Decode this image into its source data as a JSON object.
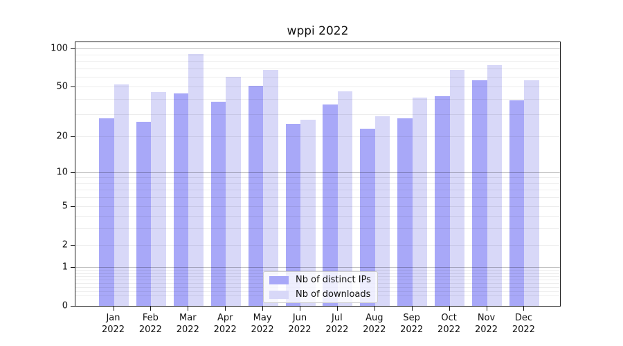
{
  "title": "wppi 2022",
  "colors": {
    "distinct_ips_bar": "#a8a8f8",
    "downloads_bar": "#d8d8f8",
    "axis": "#1a1a1a"
  },
  "legend": {
    "entries": [
      {
        "label": "Nb of distinct IPs"
      },
      {
        "label": "Nb of downloads"
      }
    ]
  },
  "chart_data": {
    "type": "bar",
    "title": "wppi 2022",
    "xlabel": "",
    "ylabel": "",
    "yscale": "log1p",
    "ylim": [
      0,
      112
    ],
    "yticks": [
      0,
      1,
      2,
      5,
      10,
      20,
      50,
      100
    ],
    "grid": true,
    "legend_position": "lower center",
    "categories": [
      "Jan 2022",
      "Feb 2022",
      "Mar 2022",
      "Apr 2022",
      "May 2022",
      "Jun 2022",
      "Jul 2022",
      "Aug 2022",
      "Sep 2022",
      "Oct 2022",
      "Nov 2022",
      "Dec 2022"
    ],
    "months": [
      "Jan",
      "Feb",
      "Mar",
      "Apr",
      "May",
      "Jun",
      "Jul",
      "Aug",
      "Sep",
      "Oct",
      "Nov",
      "Dec"
    ],
    "year": "2022",
    "series": [
      {
        "name": "Nb of distinct IPs",
        "color": "#a8a8f8",
        "values": [
          28,
          26,
          44,
          38,
          51,
          25,
          36,
          23,
          28,
          42,
          56,
          39
        ]
      },
      {
        "name": "Nb of downloads",
        "color": "#d8d8f8",
        "values": [
          52,
          45,
          90,
          60,
          68,
          27,
          46,
          29,
          41,
          68,
          74,
          56
        ]
      }
    ]
  }
}
